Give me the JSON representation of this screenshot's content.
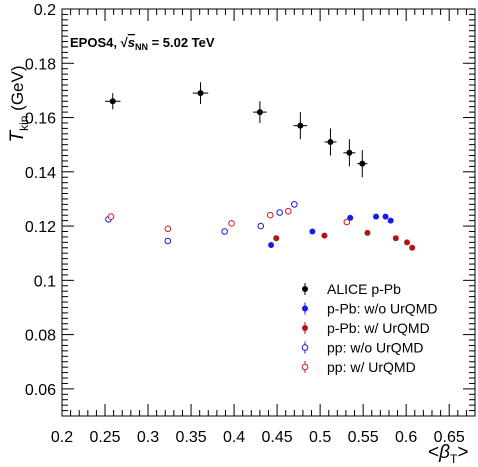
{
  "chart_data": {
    "type": "scatter",
    "title": "",
    "annotation": {
      "prefix": "EPOS4, ",
      "sqrt_symbol": "√",
      "s": "s",
      "subscript": "NN",
      "value": " = 5.02 TeV"
    },
    "xlabel": {
      "open": "<",
      "beta": "β",
      "sub": "T",
      "close": ">"
    },
    "ylabel": {
      "T": "T",
      "sub": "kin",
      "unit": " (GeV)"
    },
    "xlim": [
      0.2,
      0.68
    ],
    "ylim": [
      0.05,
      0.2
    ],
    "x_tick_labels": [
      "0.2",
      "0.25",
      "0.3",
      "0.35",
      "0.4",
      "0.45",
      "0.5",
      "0.55",
      "0.6",
      "0.65"
    ],
    "x_tick_values": [
      0.2,
      0.25,
      0.3,
      0.35,
      0.4,
      0.45,
      0.5,
      0.55,
      0.6,
      0.65
    ],
    "y_tick_labels": [
      "0.06",
      "0.08",
      "0.1",
      "0.12",
      "0.14",
      "0.16",
      "0.18",
      "0.2"
    ],
    "y_tick_values": [
      0.06,
      0.08,
      0.1,
      0.12,
      0.14,
      0.16,
      0.18,
      0.2
    ],
    "legend_position": "bottom-right",
    "series": [
      {
        "name": "ALICE p-Pb",
        "color": "#000000",
        "marker": "filled-circle",
        "error_bars": true,
        "points": [
          {
            "x": 0.259,
            "y": 0.166,
            "xerr": 0.009,
            "yerr": 0.003
          },
          {
            "x": 0.361,
            "y": 0.169,
            "xerr": 0.009,
            "yerr": 0.004
          },
          {
            "x": 0.43,
            "y": 0.162,
            "xerr": 0.008,
            "yerr": 0.004
          },
          {
            "x": 0.477,
            "y": 0.157,
            "xerr": 0.008,
            "yerr": 0.005
          },
          {
            "x": 0.512,
            "y": 0.151,
            "xerr": 0.007,
            "yerr": 0.005
          },
          {
            "x": 0.534,
            "y": 0.147,
            "xerr": 0.007,
            "yerr": 0.005
          },
          {
            "x": 0.549,
            "y": 0.143,
            "xerr": 0.006,
            "yerr": 0.005
          }
        ]
      },
      {
        "name": "p-Pb: w/o UrQMD",
        "color": "#1a1aee",
        "marker": "filled-circle",
        "error_bars": false,
        "points": [
          {
            "x": 0.443,
            "y": 0.113
          },
          {
            "x": 0.491,
            "y": 0.118
          },
          {
            "x": 0.535,
            "y": 0.123
          },
          {
            "x": 0.565,
            "y": 0.1235
          },
          {
            "x": 0.576,
            "y": 0.1235
          },
          {
            "x": 0.582,
            "y": 0.122
          }
        ]
      },
      {
        "name": "p-Pb: w/ UrQMD",
        "color": "#b01414",
        "marker": "filled-circle",
        "error_bars": false,
        "points": [
          {
            "x": 0.449,
            "y": 0.1155
          },
          {
            "x": 0.505,
            "y": 0.1165
          },
          {
            "x": 0.555,
            "y": 0.1175
          },
          {
            "x": 0.588,
            "y": 0.1155
          },
          {
            "x": 0.601,
            "y": 0.114
          },
          {
            "x": 0.607,
            "y": 0.112
          }
        ]
      },
      {
        "name": "pp: w/o UrQMD",
        "color": "#1a1aee",
        "marker": "open-circle",
        "error_bars": false,
        "points": [
          {
            "x": 0.254,
            "y": 0.1225
          },
          {
            "x": 0.323,
            "y": 0.1145
          },
          {
            "x": 0.389,
            "y": 0.118
          },
          {
            "x": 0.431,
            "y": 0.12
          },
          {
            "x": 0.453,
            "y": 0.125
          },
          {
            "x": 0.47,
            "y": 0.128
          }
        ]
      },
      {
        "name": "pp: w/ UrQMD",
        "color": "#d21e1e",
        "marker": "open-circle",
        "error_bars": false,
        "points": [
          {
            "x": 0.257,
            "y": 0.1235
          },
          {
            "x": 0.323,
            "y": 0.119
          },
          {
            "x": 0.397,
            "y": 0.121
          },
          {
            "x": 0.442,
            "y": 0.124
          },
          {
            "x": 0.463,
            "y": 0.1255
          },
          {
            "x": 0.531,
            "y": 0.1215
          }
        ]
      }
    ]
  }
}
